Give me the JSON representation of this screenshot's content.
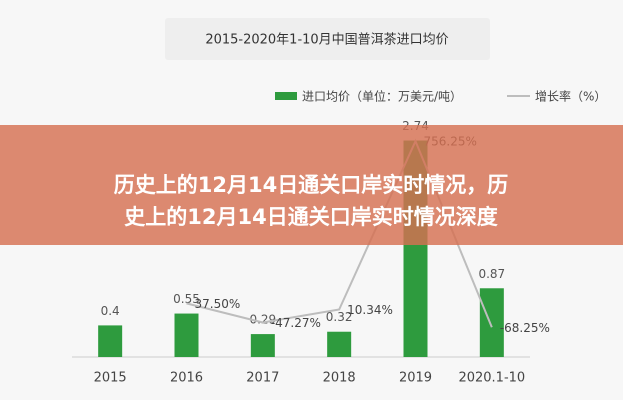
{
  "chart_data": {
    "type": "bar-line",
    "title": "2015-2020年1-10月中国普洱茶进口均价",
    "categories": [
      "2015",
      "2016",
      "2017",
      "2018",
      "2019",
      "2020.1-10"
    ],
    "series": [
      {
        "name": "进口均价（单位：万美元/吨）",
        "color": "#2e9b3e",
        "type": "bar",
        "values": [
          0.4,
          0.55,
          0.29,
          0.32,
          2.74,
          0.87
        ]
      },
      {
        "name": "增长率（%）",
        "color": "#bdbdbd",
        "type": "line",
        "axis": "y2",
        "values": [
          null,
          37.5,
          -47.27,
          10.34,
          756.25,
          -68.25
        ],
        "value_labels": [
          null,
          "37.50%",
          "-47.27%",
          "10.34%",
          "756.25%",
          "-68.25%"
        ]
      }
    ],
    "ylim": [
      0,
      3
    ],
    "y2lim": [
      -200,
      850
    ]
  },
  "overlay_title": [
    "历史上的12月14日通关口岸实时情况，历",
    "史上的12月14日通关口岸实时情况深度"
  ]
}
